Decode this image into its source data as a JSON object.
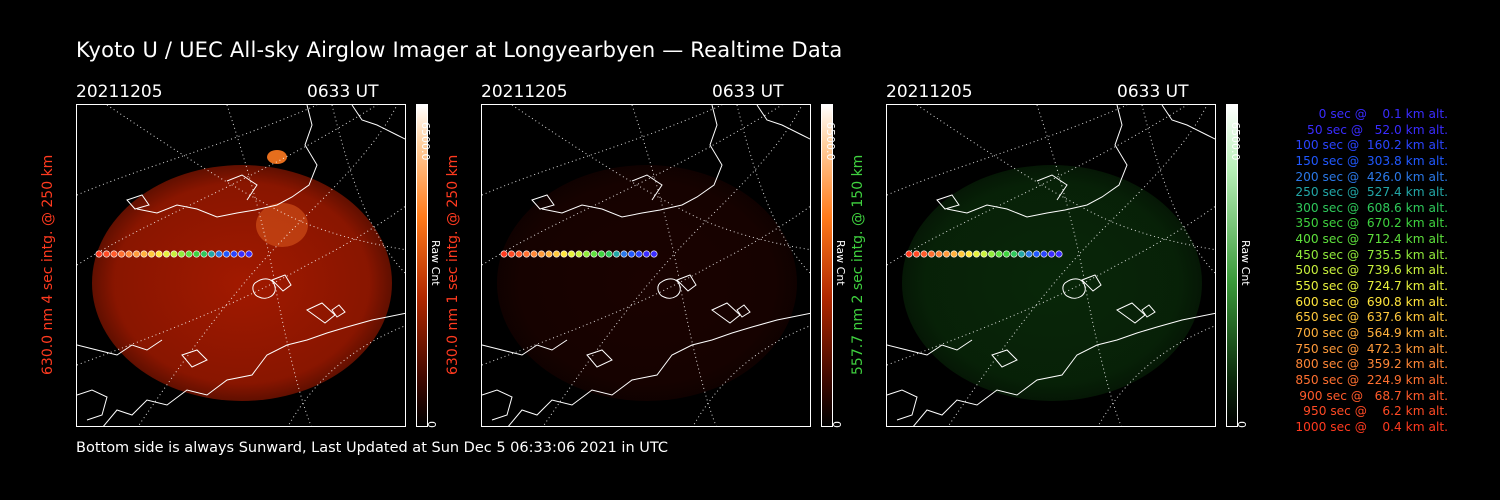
{
  "title": "Kyoto U / UEC All-sky Airglow Imager at Longyearbyen — Realtime Data",
  "footer": "Bottom side is always Sunward, Last Updated at Sun Dec  5 06:33:06 2021 in UTC",
  "panels": [
    {
      "date": "20211205",
      "time": "0633 UT",
      "ylabel": "630.0 nm 4 sec intg. @ 250 km",
      "ylabel_color": "#ff3a1f",
      "cbar_max": "6500.0",
      "cbar_min": "0",
      "cbar_unit": "Raw Cnt",
      "image_color": "#b31c00",
      "image_brightness": 0.9
    },
    {
      "date": "20211205",
      "time": "0633 UT",
      "ylabel": "630.0 nm 1 sec intg. @ 250 km",
      "ylabel_color": "#ff3a1f",
      "cbar_max": "6500.0",
      "cbar_min": "0",
      "cbar_unit": "Raw Cnt",
      "image_color": "#4a0600",
      "image_brightness": 0.35
    },
    {
      "date": "20211205",
      "time": "0633 UT",
      "ylabel": "557.7 nm 2 sec intg. @ 150 km",
      "ylabel_color": "#3fd13f",
      "cbar_max": "6500.0",
      "cbar_min": "0",
      "cbar_unit": "Raw Cnt",
      "image_color": "#114d11",
      "image_brightness": 0.5
    }
  ],
  "legend": [
    {
      "text": "   0 sec @    0.1 km alt.",
      "color": "#3a2cff"
    },
    {
      "text": "  50 sec @   52.0 km alt.",
      "color": "#3a2cff"
    },
    {
      "text": " 100 sec @  160.2 km alt.",
      "color": "#2a44ff"
    },
    {
      "text": " 150 sec @  303.8 km alt.",
      "color": "#2058ff"
    },
    {
      "text": " 200 sec @  426.0 km alt.",
      "color": "#2a78e8"
    },
    {
      "text": " 250 sec @  527.4 km alt.",
      "color": "#22a6a6"
    },
    {
      "text": " 300 sec @  608.6 km alt.",
      "color": "#2ec85a"
    },
    {
      "text": " 350 sec @  670.2 km alt.",
      "color": "#3ed23e"
    },
    {
      "text": " 400 sec @  712.4 km alt.",
      "color": "#5ee03c"
    },
    {
      "text": " 450 sec @  735.5 km alt.",
      "color": "#90ea3a"
    },
    {
      "text": " 500 sec @  739.6 km alt.",
      "color": "#c8f03c"
    },
    {
      "text": " 550 sec @  724.7 km alt.",
      "color": "#e6f03c"
    },
    {
      "text": " 600 sec @  690.8 km alt.",
      "color": "#ffe53c"
    },
    {
      "text": " 650 sec @  637.6 km alt.",
      "color": "#ffc83c"
    },
    {
      "text": " 700 sec @  564.9 km alt.",
      "color": "#ffb03c"
    },
    {
      "text": " 750 sec @  472.3 km alt.",
      "color": "#ff9a3a"
    },
    {
      "text": " 800 sec @  359.2 km alt.",
      "color": "#ff8636"
    },
    {
      "text": " 850 sec @  224.9 km alt.",
      "color": "#ff7030"
    },
    {
      "text": " 900 sec @   68.7 km alt.",
      "color": "#ff5a2a"
    },
    {
      "text": " 950 sec @    6.2 km alt.",
      "color": "#ff4a24"
    },
    {
      "text": "1000 sec @    0.4 km alt.",
      "color": "#ff3a1f"
    }
  ]
}
